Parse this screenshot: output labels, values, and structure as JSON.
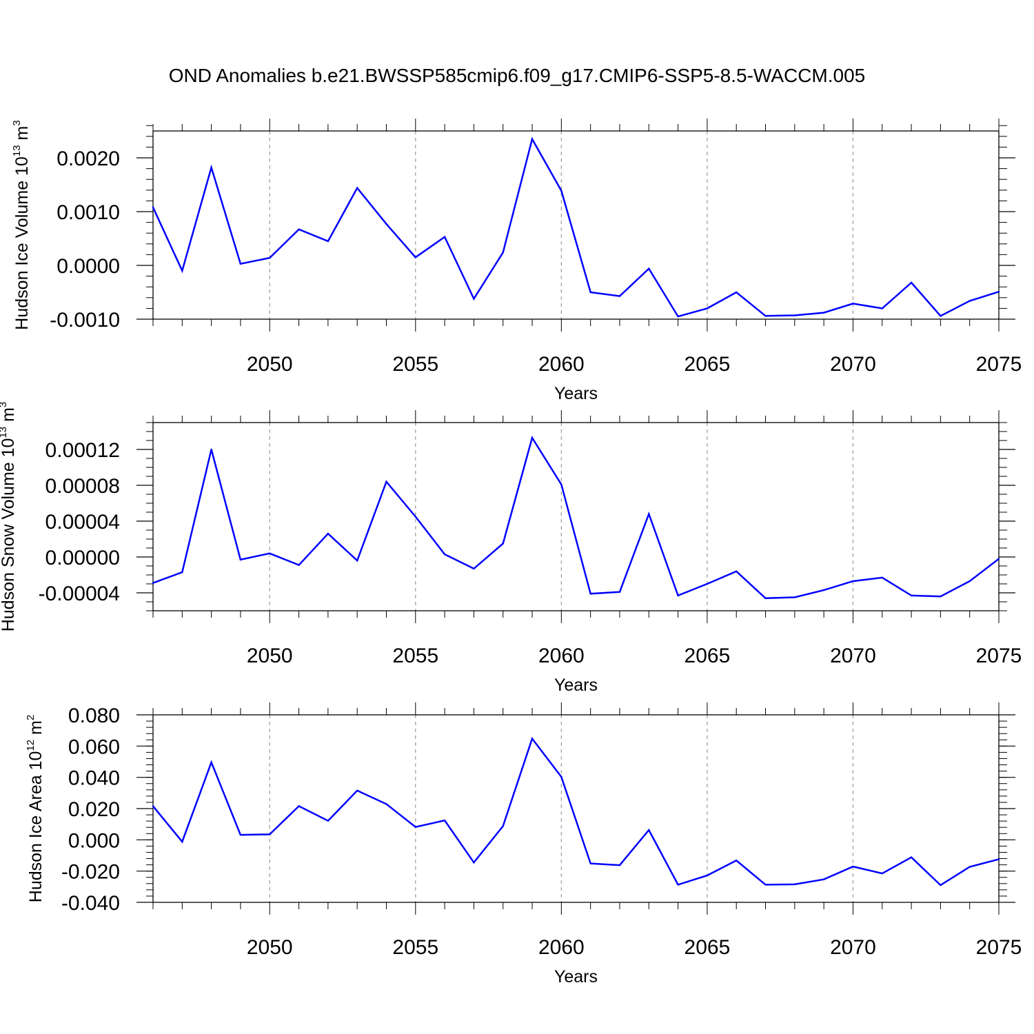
{
  "title": "OND Anomalies b.e21.BWSSP585cmip6.f09_g17.CMIP6-SSP5-8.5-WACCM.005",
  "colors": {
    "line": "#0000ff",
    "axis": "#000000",
    "grid": "#a0a0a0",
    "background": "#ffffff"
  },
  "chart_data": [
    {
      "type": "line",
      "ylabel": "Hudson Ice Volume 10",
      "ylabel_exp": "13",
      "ylabel_unit": " m",
      "ylabel_unit_exp": "3",
      "xlabel": "Years",
      "xlim": [
        2046,
        2075
      ],
      "ylim": [
        -0.001,
        0.0025
      ],
      "yticks": [
        -0.001,
        0,
        0.001,
        0.002
      ],
      "ytick_labels": [
        "-0.0010",
        "0.0000",
        "0.0010",
        "0.0020"
      ],
      "yminor_step": 0.0002,
      "xticks": [
        2050,
        2055,
        2060,
        2065,
        2070,
        2075
      ],
      "xtick_labels": [
        "2050",
        "2055",
        "2060",
        "2065",
        "2070",
        "2075"
      ],
      "grid_x": [
        2050,
        2055,
        2060,
        2065,
        2070
      ],
      "x": [
        2046,
        2047,
        2048,
        2049,
        2050,
        2051,
        2052,
        2053,
        2054,
        2055,
        2056,
        2057,
        2058,
        2059,
        2060,
        2061,
        2062,
        2063,
        2064,
        2065,
        2066,
        2067,
        2068,
        2069,
        2070,
        2071,
        2072,
        2073,
        2074,
        2075
      ],
      "y": [
        0.00108,
        -0.0001,
        0.00182,
        3e-05,
        0.00014,
        0.00067,
        0.00045,
        0.00144,
        0.00077,
        0.00015,
        0.00053,
        -0.00062,
        0.00024,
        0.00235,
        0.00139,
        -0.0005,
        -0.00057,
        -6e-05,
        -0.00095,
        -0.0008,
        -0.0005,
        -0.00094,
        -0.00093,
        -0.00088,
        -0.00071,
        -0.0008,
        -0.00032,
        -0.00094,
        -0.00066,
        -0.00049
      ]
    },
    {
      "type": "line",
      "ylabel": "Hudson Snow Volume 10",
      "ylabel_exp": "13",
      "ylabel_unit": " m",
      "ylabel_unit_exp": "3",
      "xlabel": "Years",
      "xlim": [
        2046,
        2075
      ],
      "ylim": [
        -6e-05,
        0.00015
      ],
      "yticks": [
        -4e-05,
        0,
        4e-05,
        8e-05,
        0.00012
      ],
      "ytick_labels": [
        "-0.00004",
        "0.00000",
        "0.00004",
        "0.00008",
        "0.00012"
      ],
      "yminor_step": 1e-05,
      "xticks": [
        2050,
        2055,
        2060,
        2065,
        2070,
        2075
      ],
      "xtick_labels": [
        "2050",
        "2055",
        "2060",
        "2065",
        "2070",
        "2075"
      ],
      "grid_x": [
        2050,
        2055,
        2060,
        2065,
        2070
      ],
      "x": [
        2046,
        2047,
        2048,
        2049,
        2050,
        2051,
        2052,
        2053,
        2054,
        2055,
        2056,
        2057,
        2058,
        2059,
        2060,
        2061,
        2062,
        2063,
        2064,
        2065,
        2066,
        2067,
        2068,
        2069,
        2070,
        2071,
        2072,
        2073,
        2074,
        2075
      ],
      "y": [
        -2.9e-05,
        -1.7e-05,
        0.00012,
        -3e-06,
        4e-06,
        -9e-06,
        2.6e-05,
        -4e-06,
        8.4e-05,
        4.5e-05,
        3e-06,
        -1.3e-05,
        1.5e-05,
        0.000133,
        8.1e-05,
        -4.1e-05,
        -3.9e-05,
        4.8e-05,
        -4.3e-05,
        -3e-05,
        -1.6e-05,
        -4.6e-05,
        -4.5e-05,
        -3.7e-05,
        -2.7e-05,
        -2.3e-05,
        -4.3e-05,
        -4.4e-05,
        -2.7e-05,
        -2e-06
      ]
    },
    {
      "type": "line",
      "ylabel": "Hudson Ice Area 10",
      "ylabel_exp": "12",
      "ylabel_unit": " m",
      "ylabel_unit_exp": "2",
      "xlabel": "Years",
      "xlim": [
        2046,
        2075
      ],
      "ylim": [
        -0.04,
        0.08
      ],
      "yticks": [
        -0.04,
        -0.02,
        0,
        0.02,
        0.04,
        0.06,
        0.08
      ],
      "ytick_labels": [
        "-0.040",
        "-0.020",
        "0.000",
        "0.020",
        "0.040",
        "0.060",
        "0.080"
      ],
      "yminor_step": 0.004,
      "xticks": [
        2050,
        2055,
        2060,
        2065,
        2070,
        2075
      ],
      "xtick_labels": [
        "2050",
        "2055",
        "2060",
        "2065",
        "2070",
        "2075"
      ],
      "grid_x": [
        2050,
        2055,
        2060,
        2065,
        2070
      ],
      "x": [
        2046,
        2047,
        2048,
        2049,
        2050,
        2051,
        2052,
        2053,
        2054,
        2055,
        2056,
        2057,
        2058,
        2059,
        2060,
        2061,
        2062,
        2063,
        2064,
        2065,
        2066,
        2067,
        2068,
        2069,
        2070,
        2071,
        2072,
        2073,
        2074,
        2075
      ],
      "y": [
        0.0216,
        -0.0012,
        0.0496,
        0.0032,
        0.0035,
        0.0216,
        0.0122,
        0.0315,
        0.0229,
        0.0082,
        0.0124,
        -0.0145,
        0.0088,
        0.0648,
        0.0403,
        -0.0151,
        -0.0162,
        0.0063,
        -0.0287,
        -0.0228,
        -0.0132,
        -0.0287,
        -0.0285,
        -0.0253,
        -0.0171,
        -0.0215,
        -0.0112,
        -0.029,
        -0.0173,
        -0.0124
      ]
    }
  ]
}
